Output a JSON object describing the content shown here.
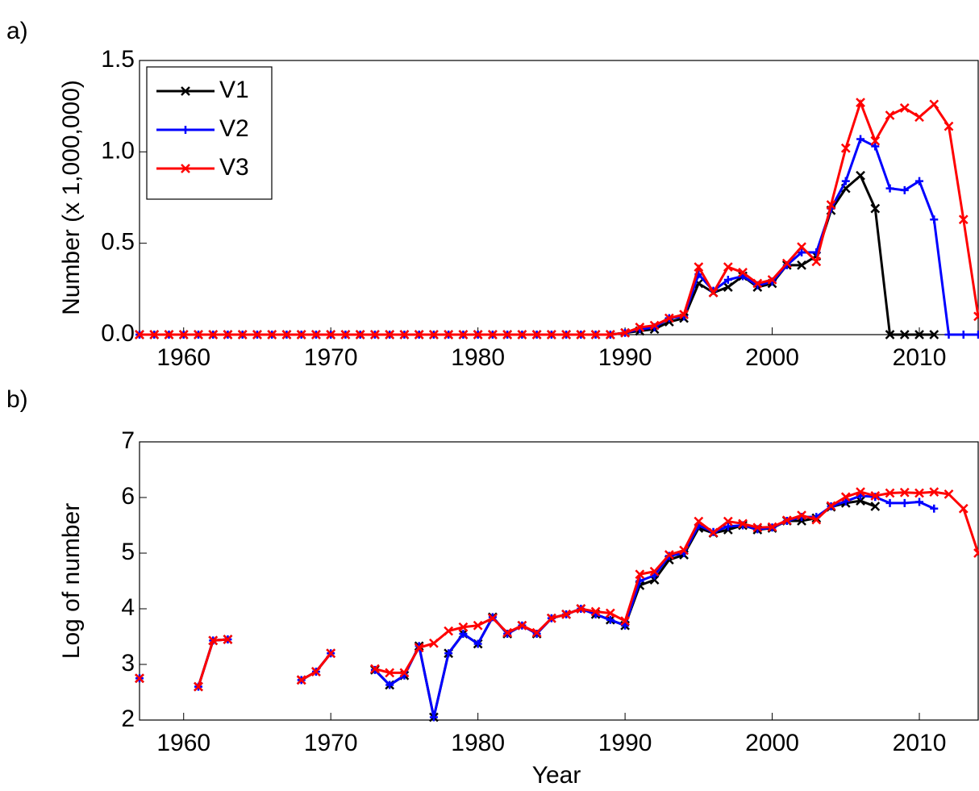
{
  "chart_data": [
    {
      "type": "line",
      "panel_label": "a)",
      "ylabel": "Number (x 1,000,000)",
      "legend": "upper left",
      "x": [
        1957,
        1958,
        1959,
        1960,
        1961,
        1962,
        1963,
        1964,
        1965,
        1966,
        1967,
        1968,
        1969,
        1970,
        1971,
        1972,
        1973,
        1974,
        1975,
        1976,
        1977,
        1978,
        1979,
        1980,
        1981,
        1982,
        1983,
        1984,
        1985,
        1986,
        1987,
        1988,
        1989,
        1990,
        1991,
        1992,
        1993,
        1994,
        1995,
        1996,
        1997,
        1998,
        1999,
        2000,
        2001,
        2002,
        2003,
        2004,
        2005,
        2006,
        2007,
        2008,
        2009,
        2010,
        2011,
        2012,
        2013,
        2014
      ],
      "xlim": [
        1957,
        2014
      ],
      "xticks": [
        1960,
        1970,
        1980,
        1990,
        2000,
        2010
      ],
      "ylim": [
        0,
        1.5
      ],
      "yticks": [
        {
          "value": 0,
          "label": "0.0"
        },
        0.5,
        {
          "value": 1,
          "label": "1.0"
        },
        1.5
      ],
      "series": [
        {
          "name": "V1",
          "color": "#000000",
          "marker": "x",
          "values": [
            0,
            0,
            0,
            0,
            0,
            0,
            0,
            0,
            0,
            0,
            0,
            0,
            0,
            0,
            0,
            0,
            0,
            0,
            0,
            0,
            0,
            0,
            0,
            0,
            0,
            0,
            0,
            0,
            0,
            0,
            0,
            0,
            0,
            0.01,
            0.02,
            0.03,
            0.07,
            0.09,
            0.28,
            0.23,
            0.26,
            0.32,
            0.26,
            0.28,
            0.38,
            0.38,
            0.43,
            0.68,
            0.8,
            0.87,
            0.69,
            0,
            0,
            0,
            0,
            null,
            null,
            null
          ]
        },
        {
          "name": "V2",
          "color": "#0000ff",
          "marker": "+",
          "values": [
            0,
            0,
            0,
            0,
            0,
            0,
            0,
            0,
            0,
            0,
            0,
            0,
            0,
            0,
            0,
            0,
            0,
            0,
            0,
            0,
            0,
            0,
            0,
            0,
            0,
            0,
            0,
            0,
            0,
            0,
            0,
            0,
            0,
            0.01,
            0.03,
            0.04,
            0.09,
            0.1,
            0.33,
            0.24,
            0.3,
            0.32,
            0.27,
            0.29,
            0.38,
            0.45,
            0.45,
            0.69,
            0.84,
            1.07,
            1.03,
            0.8,
            0.79,
            0.84,
            0.63,
            0,
            0,
            0
          ]
        },
        {
          "name": "V3",
          "color": "#ff0000",
          "marker": "x",
          "values": [
            0,
            0,
            0,
            0,
            0,
            0,
            0,
            0,
            0,
            0,
            0,
            0,
            0,
            0,
            0,
            0,
            0,
            0,
            0,
            0,
            0,
            0,
            0,
            0,
            0,
            0,
            0,
            0,
            0,
            0,
            0,
            0,
            0,
            0.01,
            0.04,
            0.05,
            0.09,
            0.11,
            0.37,
            0.23,
            0.37,
            0.34,
            0.28,
            0.3,
            0.39,
            0.48,
            0.4,
            0.71,
            1.02,
            1.27,
            1.06,
            1.2,
            1.24,
            1.19,
            1.26,
            1.14,
            0.63,
            0.1
          ]
        }
      ]
    },
    {
      "type": "line",
      "panel_label": "b)",
      "ylabel": "Log of number",
      "xlabel": "Year",
      "x": [
        1957,
        1958,
        1959,
        1960,
        1961,
        1962,
        1963,
        1964,
        1965,
        1966,
        1967,
        1968,
        1969,
        1970,
        1971,
        1972,
        1973,
        1974,
        1975,
        1976,
        1977,
        1978,
        1979,
        1980,
        1981,
        1982,
        1983,
        1984,
        1985,
        1986,
        1987,
        1988,
        1989,
        1990,
        1991,
        1992,
        1993,
        1994,
        1995,
        1996,
        1997,
        1998,
        1999,
        2000,
        2001,
        2002,
        2003,
        2004,
        2005,
        2006,
        2007,
        2008,
        2009,
        2010,
        2011,
        2012,
        2013,
        2014
      ],
      "xlim": [
        1957,
        2014
      ],
      "xticks": [
        1960,
        1970,
        1980,
        1990,
        2000,
        2010
      ],
      "ylim": [
        2,
        7
      ],
      "yticks": [
        2,
        3,
        4,
        5,
        6,
        7
      ],
      "series": [
        {
          "color": "#000000",
          "marker": "x",
          "values": [
            2.75,
            null,
            null,
            null,
            2.6,
            3.43,
            3.45,
            null,
            null,
            null,
            null,
            2.72,
            2.87,
            3.2,
            null,
            null,
            2.9,
            2.63,
            2.8,
            3.33,
            2.05,
            3.2,
            3.55,
            3.37,
            3.85,
            3.55,
            3.7,
            3.55,
            3.83,
            3.9,
            4.0,
            3.9,
            3.8,
            3.7,
            4.42,
            4.52,
            4.88,
            4.97,
            5.45,
            5.36,
            5.42,
            5.5,
            5.42,
            5.45,
            5.58,
            5.58,
            5.63,
            5.83,
            5.9,
            5.94,
            5.84,
            null,
            null,
            null,
            null,
            null,
            null,
            null
          ]
        },
        {
          "color": "#0000ff",
          "marker": "+",
          "values": [
            2.75,
            null,
            null,
            null,
            2.6,
            3.43,
            3.45,
            null,
            null,
            null,
            null,
            2.72,
            2.87,
            3.2,
            null,
            null,
            2.9,
            2.63,
            2.8,
            3.33,
            2.05,
            3.2,
            3.55,
            3.37,
            3.85,
            3.55,
            3.7,
            3.55,
            3.83,
            3.9,
            4.0,
            3.9,
            3.8,
            3.7,
            4.5,
            4.6,
            4.95,
            5.0,
            5.5,
            5.38,
            5.48,
            5.5,
            5.43,
            5.46,
            5.58,
            5.65,
            5.65,
            5.84,
            5.93,
            6.03,
            6.01,
            5.9,
            5.9,
            5.92,
            5.8,
            null,
            null,
            null
          ]
        },
        {
          "color": "#ff0000",
          "marker": "x",
          "values": [
            2.75,
            null,
            null,
            null,
            2.6,
            3.43,
            3.45,
            null,
            null,
            null,
            null,
            2.72,
            2.87,
            3.2,
            null,
            null,
            2.92,
            2.85,
            2.85,
            3.3,
            3.38,
            3.6,
            3.67,
            3.7,
            3.83,
            3.57,
            3.7,
            3.57,
            3.83,
            3.9,
            4.0,
            3.95,
            3.92,
            3.78,
            4.62,
            4.67,
            4.97,
            5.05,
            5.57,
            5.37,
            5.57,
            5.53,
            5.46,
            5.47,
            5.59,
            5.68,
            5.6,
            5.85,
            6.01,
            6.1,
            6.03,
            6.08,
            6.09,
            6.08,
            6.1,
            6.06,
            5.8,
            5.0
          ]
        }
      ]
    }
  ]
}
